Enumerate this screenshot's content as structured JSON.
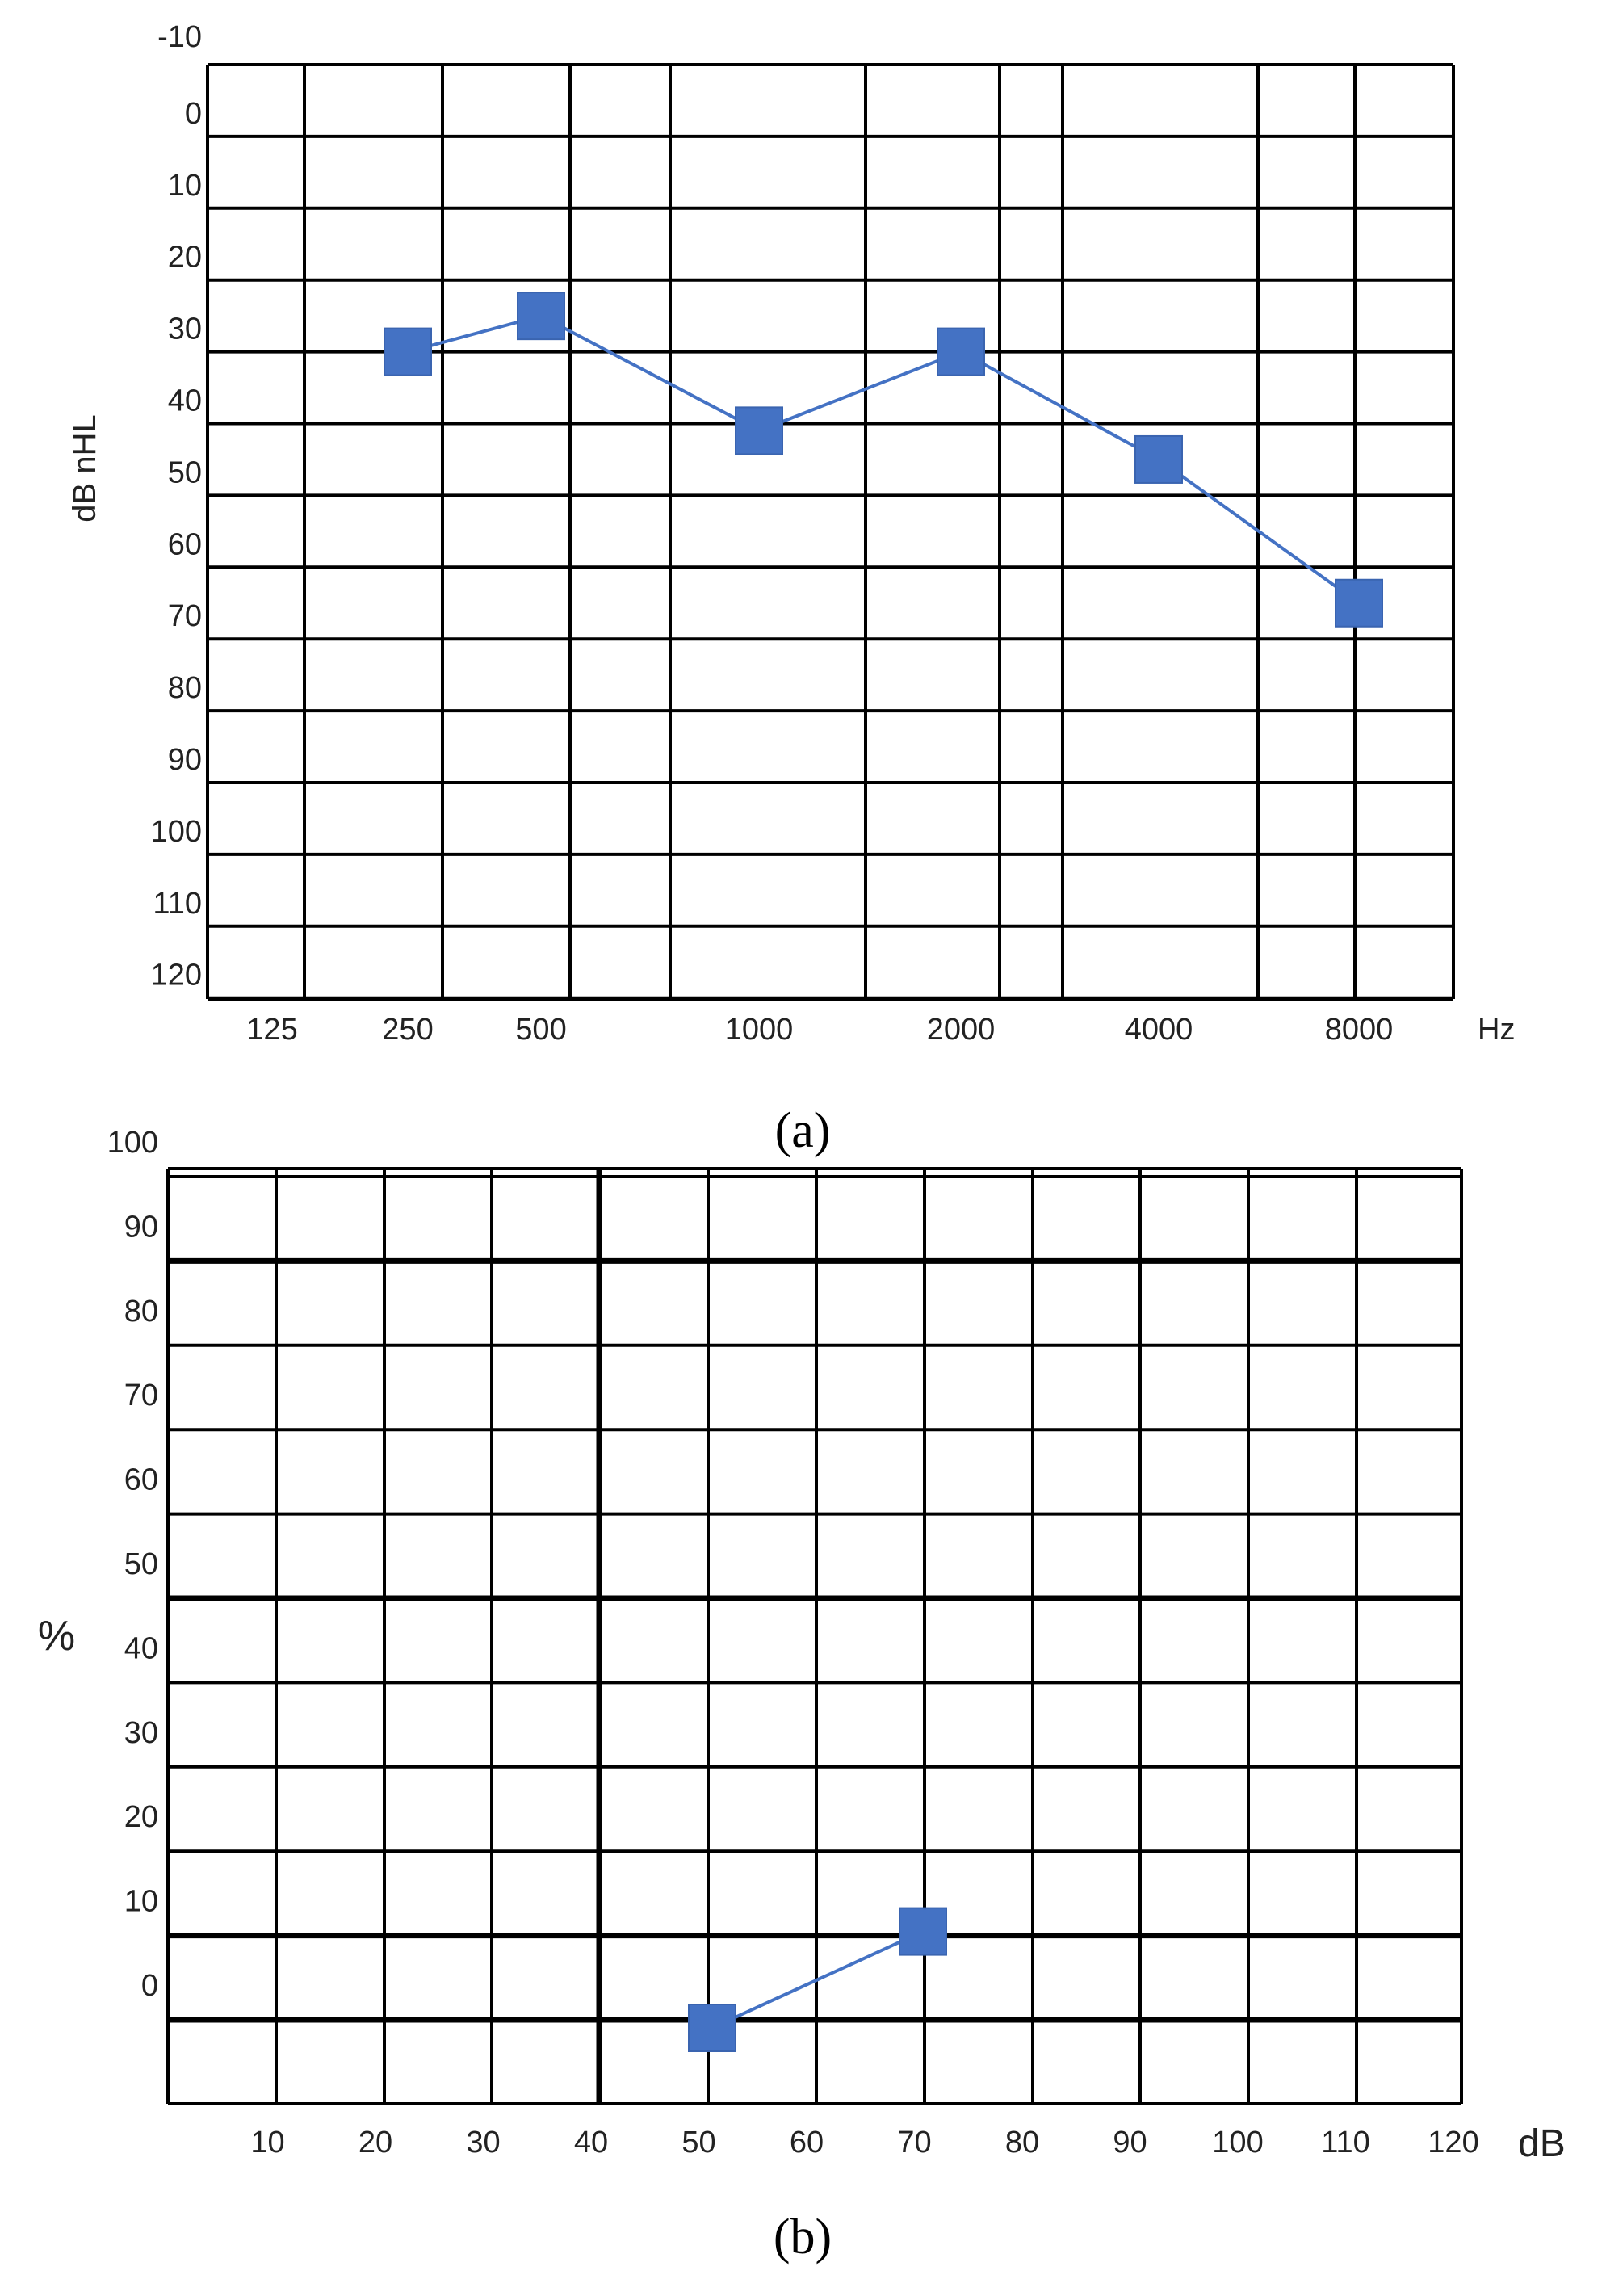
{
  "chart_data": [
    {
      "type": "line",
      "panel_label": "a",
      "ylabel": "dB nHL",
      "x_unit": "Hz",
      "categories": [
        "125",
        "250",
        "500",
        "1000",
        "2000",
        "4000",
        "8000"
      ],
      "y_ticks": [
        -10,
        0,
        10,
        20,
        30,
        40,
        50,
        60,
        70,
        80,
        90,
        100,
        110,
        120
      ],
      "ylim": [
        -10,
        120
      ],
      "y_inverted": true,
      "grid": true,
      "marker": "square",
      "series": [
        {
          "x": [
            "250",
            "500",
            "1000",
            "2000",
            "4000",
            "8000"
          ],
          "values": [
            30,
            25,
            41,
            30,
            45,
            65
          ]
        }
      ],
      "color": "#4472C4"
    },
    {
      "type": "line",
      "panel_label": "b",
      "ylabel": "%",
      "x_unit": "dB",
      "x_ticks": [
        10,
        20,
        30,
        40,
        50,
        60,
        70,
        80,
        90,
        100,
        110,
        120
      ],
      "y_ticks": [
        0,
        10,
        20,
        30,
        40,
        50,
        60,
        70,
        80,
        90,
        100
      ],
      "xlim": [
        0,
        120
      ],
      "ylim": [
        0,
        100
      ],
      "grid": true,
      "marker": "square",
      "series": [
        {
          "x": [
            52,
            71
          ],
          "values": [
            0,
            10
          ]
        }
      ],
      "color": "#4472C4"
    }
  ]
}
